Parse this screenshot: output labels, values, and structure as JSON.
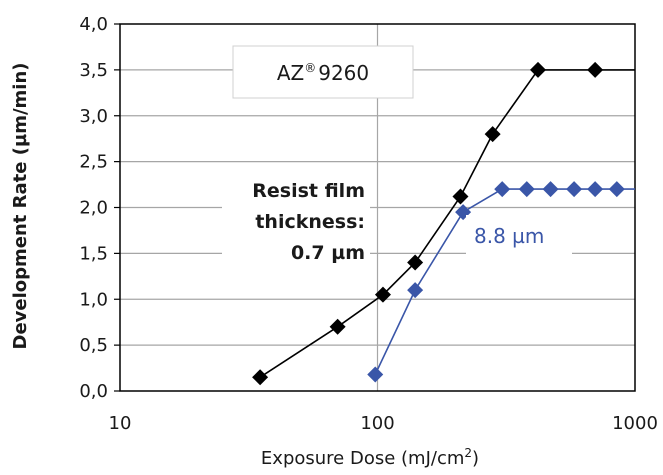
{
  "chart_data": {
    "type": "line",
    "x_scale": "log",
    "xlim": [
      10,
      1000
    ],
    "ylim": [
      0.0,
      4.0
    ],
    "xticks": [
      "10",
      "100",
      "1000"
    ],
    "yticks": [
      "0,0",
      "0,5",
      "1,0",
      "1,5",
      "2,0",
      "2,5",
      "3,0",
      "3,5",
      "4,0"
    ],
    "xlabel_main": "Exposure Dose (mJ/cm",
    "xlabel_sup": "2",
    "xlabel_end": ")",
    "ylabel": "Development  Rate (µm/min)",
    "box": {
      "brand": "AZ",
      "reg": "®",
      "model": "9260"
    },
    "ann_lines": [
      "Resist film",
      "thickness:",
      "0.7 µm"
    ],
    "series": [
      {
        "name": "0.7 µm",
        "color": "#000000",
        "x": [
          35,
          70,
          105,
          140,
          210,
          280,
          420,
          700
        ],
        "y": [
          0.15,
          0.7,
          1.05,
          1.4,
          2.12,
          2.8,
          3.5,
          3.5
        ],
        "extend_to": 1000
      },
      {
        "name": "8.8 µm",
        "color": "#3a56a8",
        "x": [
          98,
          140,
          215,
          305,
          380,
          470,
          580,
          700,
          850
        ],
        "y": [
          0.18,
          1.1,
          1.95,
          2.2,
          2.2,
          2.2,
          2.2,
          2.2,
          2.2
        ],
        "extend_to": 1000
      }
    ]
  }
}
